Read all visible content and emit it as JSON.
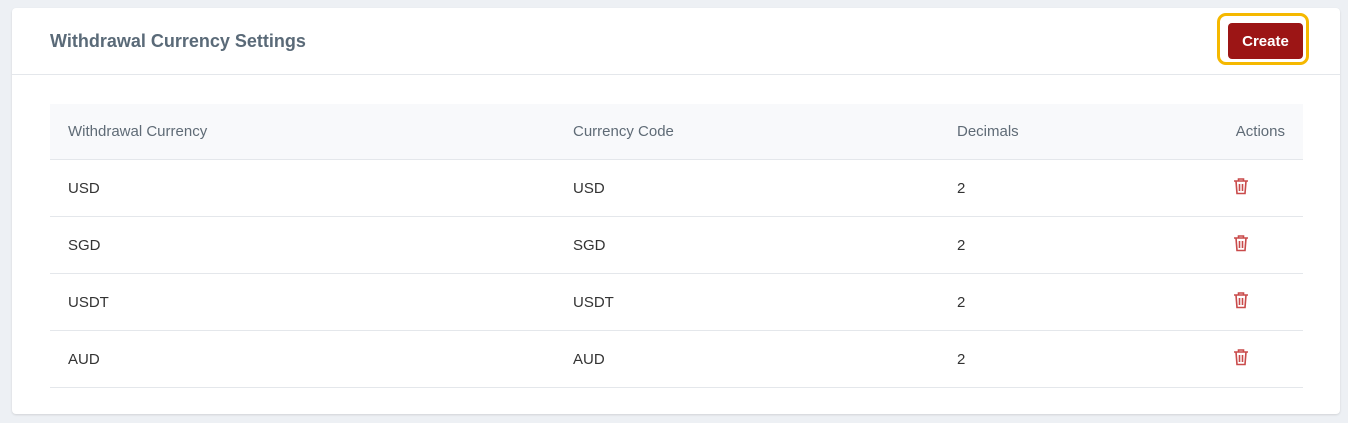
{
  "header": {
    "title": "Withdrawal Currency Settings",
    "create_label": "Create"
  },
  "table": {
    "columns": [
      "Withdrawal Currency",
      "Currency Code",
      "Decimals",
      "Actions"
    ],
    "rows": [
      {
        "currency": "USD",
        "code": "USD",
        "decimals": "2",
        "action_icon": "trash-icon"
      },
      {
        "currency": "SGD",
        "code": "SGD",
        "decimals": "2",
        "action_icon": "trash-icon"
      },
      {
        "currency": "USDT",
        "code": "USDT",
        "decimals": "2",
        "action_icon": "trash-icon"
      },
      {
        "currency": "AUD",
        "code": "AUD",
        "decimals": "2",
        "action_icon": "trash-icon"
      }
    ]
  },
  "colors": {
    "accent": "#9c1515",
    "focus": "#f5b800",
    "delete_icon": "#c94a4a"
  }
}
